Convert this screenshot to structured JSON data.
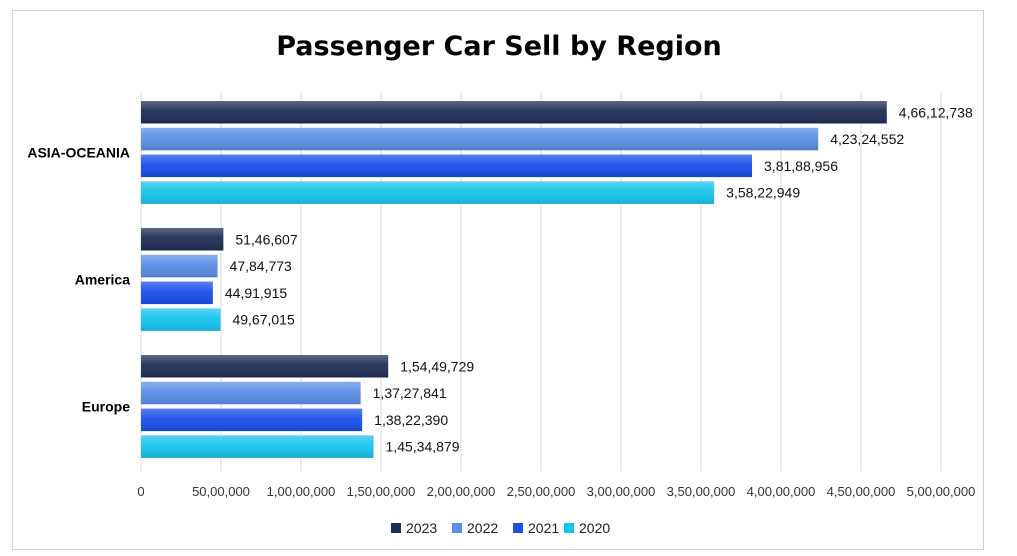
{
  "chart_data": {
    "type": "bar",
    "orientation": "horizontal",
    "title": "Passenger Car Sell by Region",
    "categories": [
      "ASIA-OCEANIA",
      "America",
      "Europe"
    ],
    "series": [
      {
        "name": "2023",
        "color": "#1f2d54",
        "values": [
          46612738,
          5146607,
          15449729
        ],
        "labels": [
          "4,66,12,738",
          "51,46,607",
          "1,54,49,729"
        ]
      },
      {
        "name": "2022",
        "color": "#5b8ee6",
        "values": [
          42324552,
          4784773,
          13727841
        ],
        "labels": [
          "4,23,24,552",
          "47,84,773",
          "1,37,27,841"
        ]
      },
      {
        "name": "2021",
        "color": "#1a4fe8",
        "values": [
          38188956,
          4491915,
          13822390
        ],
        "labels": [
          "3,81,88,956",
          "44,91,915",
          "1,38,22,390"
        ]
      },
      {
        "name": "2020",
        "color": "#18c4ec",
        "values": [
          35822949,
          4967015,
          14534879
        ],
        "labels": [
          "3,58,22,949",
          "49,67,015",
          "1,45,34,879"
        ]
      }
    ],
    "xlim": [
      0,
      50000000
    ],
    "x_ticks": [
      0,
      5000000,
      10000000,
      15000000,
      20000000,
      25000000,
      30000000,
      35000000,
      40000000,
      45000000,
      50000000
    ],
    "x_tick_labels": [
      "0",
      "50,00,000",
      "1,00,00,000",
      "1,50,00,000",
      "2,00,00,000",
      "2,50,00,000",
      "3,00,00,000",
      "3,50,00,000",
      "4,00,00,000",
      "4,50,00,000",
      "5,00,00,000"
    ],
    "grid": "vertical",
    "legend": "bottom"
  }
}
